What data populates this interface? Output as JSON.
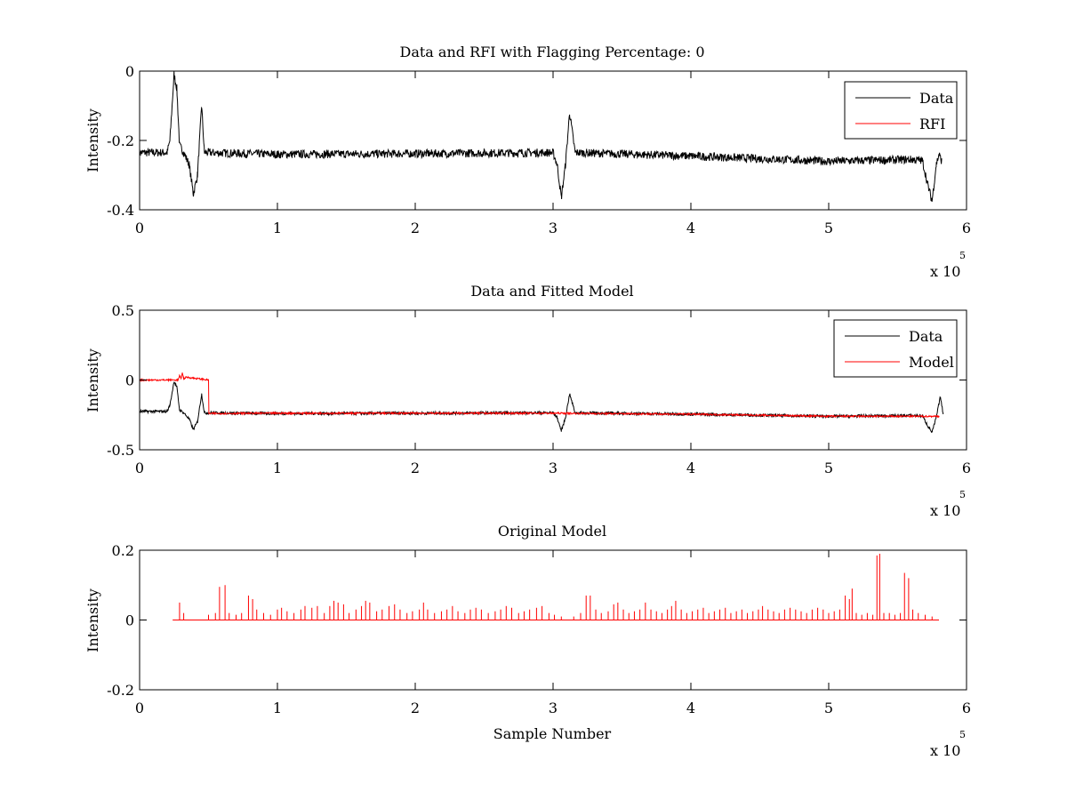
{
  "chart_data": [
    {
      "type": "line",
      "title": "Data and RFI with Flagging Percentage: 0",
      "xlabel": "",
      "ylabel": "Intensity",
      "xlim": [
        0,
        600000
      ],
      "ylim": [
        -0.4,
        0
      ],
      "xticks": [
        0,
        100000,
        200000,
        300000,
        400000,
        500000,
        600000
      ],
      "xtick_labels": [
        "0",
        "1",
        "2",
        "3",
        "4",
        "5",
        "6"
      ],
      "yticks": [
        -0.4,
        -0.2,
        0
      ],
      "ytick_labels": [
        "-0.4",
        "-0.2",
        "0"
      ],
      "x_multiplier": {
        "base": "x 10",
        "exponent": "5"
      },
      "grid": false,
      "legend": "top-right",
      "series": [
        {
          "name": "Data",
          "color": "#000000",
          "points": [
            [
              0,
              -0.235
            ],
            [
              20000,
              -0.235
            ],
            [
              22000,
              -0.2
            ],
            [
              25000,
              -0.01
            ],
            [
              27000,
              -0.05
            ],
            [
              29000,
              -0.215
            ],
            [
              32000,
              -0.235
            ],
            [
              36000,
              -0.27
            ],
            [
              39000,
              -0.355
            ],
            [
              42000,
              -0.3
            ],
            [
              45000,
              -0.1
            ],
            [
              47000,
              -0.235
            ],
            [
              100000,
              -0.24
            ],
            [
              200000,
              -0.238
            ],
            [
              300000,
              -0.235
            ],
            [
              303000,
              -0.27
            ],
            [
              306000,
              -0.365
            ],
            [
              309000,
              -0.27
            ],
            [
              312000,
              -0.12
            ],
            [
              316000,
              -0.235
            ],
            [
              400000,
              -0.245
            ],
            [
              500000,
              -0.26
            ],
            [
              560000,
              -0.255
            ],
            [
              568000,
              -0.258
            ],
            [
              572000,
              -0.33
            ],
            [
              575000,
              -0.375
            ],
            [
              578000,
              -0.27
            ],
            [
              580000,
              -0.24
            ],
            [
              582000,
              -0.26
            ]
          ],
          "noise": 0.012
        },
        {
          "name": "RFI",
          "color": "#ff0000",
          "points": []
        }
      ]
    },
    {
      "type": "line",
      "title": "Data and Fitted Model",
      "xlabel": "",
      "ylabel": "Intensity",
      "xlim": [
        0,
        600000
      ],
      "ylim": [
        -0.5,
        0.5
      ],
      "xticks": [
        0,
        100000,
        200000,
        300000,
        400000,
        500000,
        600000
      ],
      "xtick_labels": [
        "0",
        "1",
        "2",
        "3",
        "4",
        "5",
        "6"
      ],
      "yticks": [
        -0.5,
        0,
        0.5
      ],
      "ytick_labels": [
        "-0.5",
        "0",
        "0.5"
      ],
      "x_multiplier": {
        "base": "x 10",
        "exponent": "5"
      },
      "grid": false,
      "legend": "top-right",
      "series": [
        {
          "name": "Data",
          "color": "#000000",
          "points": [
            [
              0,
              -0.225
            ],
            [
              20000,
              -0.225
            ],
            [
              22000,
              -0.18
            ],
            [
              25000,
              -0.01
            ],
            [
              27000,
              -0.05
            ],
            [
              29000,
              -0.215
            ],
            [
              32000,
              -0.235
            ],
            [
              36000,
              -0.28
            ],
            [
              39000,
              -0.355
            ],
            [
              42000,
              -0.3
            ],
            [
              45000,
              -0.1
            ],
            [
              47000,
              -0.235
            ],
            [
              100000,
              -0.24
            ],
            [
              200000,
              -0.238
            ],
            [
              300000,
              -0.235
            ],
            [
              303000,
              -0.27
            ],
            [
              306000,
              -0.365
            ],
            [
              309000,
              -0.27
            ],
            [
              312000,
              -0.1
            ],
            [
              316000,
              -0.235
            ],
            [
              400000,
              -0.245
            ],
            [
              500000,
              -0.26
            ],
            [
              560000,
              -0.255
            ],
            [
              568000,
              -0.258
            ],
            [
              572000,
              -0.33
            ],
            [
              575000,
              -0.375
            ],
            [
              578000,
              -0.27
            ],
            [
              581000,
              -0.12
            ],
            [
              583000,
              -0.24
            ]
          ],
          "noise": 0.01
        },
        {
          "name": "Model",
          "color": "#ff0000",
          "points": [
            [
              0,
              0
            ],
            [
              28000,
              0
            ],
            [
              29000,
              0.03
            ],
            [
              30000,
              0.01
            ],
            [
              31000,
              0.05
            ],
            [
              32000,
              0.01
            ],
            [
              34000,
              0.02
            ],
            [
              50000,
              0
            ],
            [
              50000,
              -0.24
            ],
            [
              100000,
              -0.238
            ],
            [
              200000,
              -0.238
            ],
            [
              300000,
              -0.238
            ],
            [
              400000,
              -0.245
            ],
            [
              500000,
              -0.26
            ],
            [
              580000,
              -0.26
            ]
          ],
          "noise": 0.006
        }
      ]
    },
    {
      "type": "line",
      "title": "Original Model",
      "xlabel": "Sample Number",
      "ylabel": "Intensity",
      "xlim": [
        0,
        600000
      ],
      "ylim": [
        -0.2,
        0.2
      ],
      "xticks": [
        0,
        100000,
        200000,
        300000,
        400000,
        500000,
        600000
      ],
      "xtick_labels": [
        "0",
        "1",
        "2",
        "3",
        "4",
        "5",
        "6"
      ],
      "yticks": [
        -0.2,
        0,
        0.2
      ],
      "ytick_labels": [
        "-0.2",
        "0",
        "0.2"
      ],
      "x_multiplier": {
        "base": "x 10",
        "exponent": "5"
      },
      "grid": false,
      "legend": "none",
      "series": [
        {
          "name": "",
          "color": "#ff0000",
          "baseline": [
            [
              24000,
              0
            ],
            [
              580000,
              0
            ]
          ],
          "spikes": [
            [
              29000,
              0.05
            ],
            [
              32000,
              0.02
            ],
            [
              50000,
              0.015
            ],
            [
              55000,
              0.02
            ],
            [
              58000,
              0.095
            ],
            [
              62000,
              0.1
            ],
            [
              65000,
              0.02
            ],
            [
              70000,
              0.015
            ],
            [
              74000,
              0.02
            ],
            [
              79000,
              0.07
            ],
            [
              82000,
              0.06
            ],
            [
              85000,
              0.03
            ],
            [
              90000,
              0.02
            ],
            [
              95000,
              0.015
            ],
            [
              100000,
              0.03
            ],
            [
              103000,
              0.035
            ],
            [
              107000,
              0.025
            ],
            [
              112000,
              0.02
            ],
            [
              117000,
              0.03
            ],
            [
              120000,
              0.04
            ],
            [
              125000,
              0.035
            ],
            [
              129000,
              0.04
            ],
            [
              134000,
              0.02
            ],
            [
              138000,
              0.04
            ],
            [
              141000,
              0.055
            ],
            [
              144000,
              0.05
            ],
            [
              148000,
              0.045
            ],
            [
              152000,
              0.02
            ],
            [
              157000,
              0.03
            ],
            [
              161000,
              0.04
            ],
            [
              164000,
              0.055
            ],
            [
              167000,
              0.05
            ],
            [
              172000,
              0.025
            ],
            [
              176000,
              0.03
            ],
            [
              181000,
              0.04
            ],
            [
              185000,
              0.045
            ],
            [
              189000,
              0.03
            ],
            [
              194000,
              0.02
            ],
            [
              198000,
              0.025
            ],
            [
              203000,
              0.03
            ],
            [
              206000,
              0.05
            ],
            [
              209000,
              0.03
            ],
            [
              214000,
              0.02
            ],
            [
              219000,
              0.025
            ],
            [
              223000,
              0.03
            ],
            [
              227000,
              0.04
            ],
            [
              231000,
              0.025
            ],
            [
              236000,
              0.02
            ],
            [
              240000,
              0.03
            ],
            [
              244000,
              0.035
            ],
            [
              248000,
              0.03
            ],
            [
              253000,
              0.02
            ],
            [
              258000,
              0.025
            ],
            [
              262000,
              0.03
            ],
            [
              266000,
              0.04
            ],
            [
              270000,
              0.035
            ],
            [
              275000,
              0.02
            ],
            [
              279000,
              0.025
            ],
            [
              283000,
              0.03
            ],
            [
              288000,
              0.035
            ],
            [
              292000,
              0.04
            ],
            [
              297000,
              0.02
            ],
            [
              301000,
              0.015
            ],
            [
              306000,
              0.01
            ],
            [
              315000,
              0.01
            ],
            [
              320000,
              0.02
            ],
            [
              324000,
              0.07
            ],
            [
              327000,
              0.07
            ],
            [
              331000,
              0.03
            ],
            [
              335000,
              0.02
            ],
            [
              340000,
              0.025
            ],
            [
              344000,
              0.045
            ],
            [
              347000,
              0.05
            ],
            [
              351000,
              0.03
            ],
            [
              355000,
              0.02
            ],
            [
              359000,
              0.025
            ],
            [
              363000,
              0.03
            ],
            [
              367000,
              0.05
            ],
            [
              371000,
              0.03
            ],
            [
              375000,
              0.025
            ],
            [
              379000,
              0.02
            ],
            [
              383000,
              0.03
            ],
            [
              386000,
              0.04
            ],
            [
              389000,
              0.055
            ],
            [
              393000,
              0.03
            ],
            [
              397000,
              0.02
            ],
            [
              401000,
              0.025
            ],
            [
              405000,
              0.03
            ],
            [
              409000,
              0.035
            ],
            [
              413000,
              0.02
            ],
            [
              417000,
              0.025
            ],
            [
              421000,
              0.03
            ],
            [
              425000,
              0.035
            ],
            [
              429000,
              0.02
            ],
            [
              433000,
              0.025
            ],
            [
              437000,
              0.03
            ],
            [
              441000,
              0.02
            ],
            [
              445000,
              0.025
            ],
            [
              449000,
              0.03
            ],
            [
              452000,
              0.04
            ],
            [
              456000,
              0.03
            ],
            [
              460000,
              0.025
            ],
            [
              464000,
              0.02
            ],
            [
              468000,
              0.03
            ],
            [
              472000,
              0.035
            ],
            [
              476000,
              0.03
            ],
            [
              480000,
              0.025
            ],
            [
              484000,
              0.02
            ],
            [
              488000,
              0.03
            ],
            [
              492000,
              0.035
            ],
            [
              496000,
              0.03
            ],
            [
              500000,
              0.02
            ],
            [
              504000,
              0.025
            ],
            [
              508000,
              0.03
            ],
            [
              512000,
              0.07
            ],
            [
              515000,
              0.06
            ],
            [
              517000,
              0.09
            ],
            [
              520000,
              0.02
            ],
            [
              524000,
              0.015
            ],
            [
              528000,
              0.02
            ],
            [
              532000,
              0.015
            ],
            [
              535000,
              0.185
            ],
            [
              537000,
              0.19
            ],
            [
              540000,
              0.02
            ],
            [
              544000,
              0.02
            ],
            [
              548000,
              0.015
            ],
            [
              552000,
              0.02
            ],
            [
              555000,
              0.135
            ],
            [
              558000,
              0.12
            ],
            [
              561000,
              0.03
            ],
            [
              565000,
              0.02
            ],
            [
              570000,
              0.015
            ],
            [
              575000,
              0.01
            ]
          ]
        }
      ]
    }
  ]
}
